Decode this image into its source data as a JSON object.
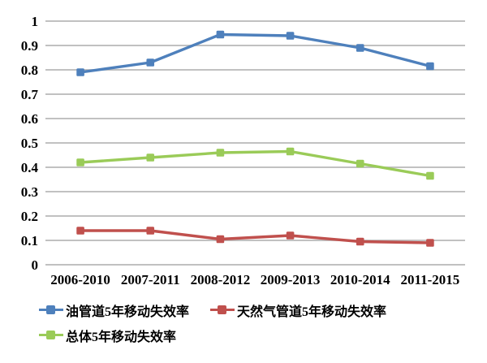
{
  "chart_data": {
    "type": "line",
    "title": "",
    "xlabel": "",
    "ylabel": "",
    "categories": [
      "2006-2010",
      "2007-2011",
      "2008-2012",
      "2009-2013",
      "2010-2014",
      "2011-2015"
    ],
    "series": [
      {
        "name": "油管道5年移动失效率",
        "color": "#4E80BC",
        "values": [
          0.79,
          0.83,
          0.945,
          0.94,
          0.89,
          0.815
        ]
      },
      {
        "name": "天然气管道5年移动失效率",
        "color": "#C0504D",
        "values": [
          0.14,
          0.14,
          0.105,
          0.12,
          0.095,
          0.09
        ]
      },
      {
        "name": "总体5年移动失效率",
        "color": "#9ACB58",
        "values": [
          0.42,
          0.44,
          0.46,
          0.465,
          0.415,
          0.365
        ]
      }
    ],
    "ylim": [
      0,
      1
    ],
    "yticks": [
      "0",
      "0.1",
      "0.2",
      "0.3",
      "0.4",
      "0.5",
      "0.6",
      "0.7",
      "0.8",
      "0.9",
      "1"
    ],
    "grid": true,
    "gridline_color": "#B8B8B8",
    "legend_position": "bottom",
    "marker": "square"
  }
}
